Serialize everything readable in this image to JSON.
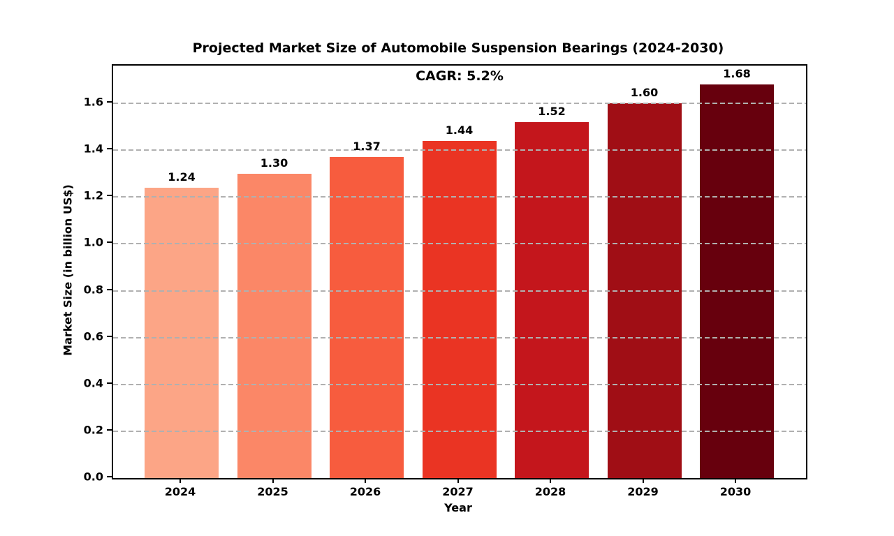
{
  "chart_data": {
    "type": "bar",
    "title": "Projected Market Size of Automobile Suspension Bearings (2024-2030)",
    "annotation": "CAGR: 5.2%",
    "categories": [
      "2024",
      "2025",
      "2026",
      "2027",
      "2028",
      "2029",
      "2030"
    ],
    "values": [
      1.24,
      1.3,
      1.37,
      1.44,
      1.52,
      1.6,
      1.68
    ],
    "value_labels": [
      "1.24",
      "1.30",
      "1.37",
      "1.44",
      "1.52",
      "1.60",
      "1.68"
    ],
    "bar_colors": [
      "#FCA586",
      "#FB8767",
      "#F75C3E",
      "#EA3423",
      "#C4161C",
      "#A00E15",
      "#67000D"
    ],
    "xlabel": "Year",
    "ylabel": "Market Size (in billion US$)",
    "ylim": [
      0,
      1.761
    ],
    "yticks": [
      0.0,
      0.2,
      0.4,
      0.6,
      0.8,
      1.0,
      1.2,
      1.4,
      1.6
    ],
    "ytick_labels": [
      "0.0",
      "0.2",
      "0.4",
      "0.6",
      "0.8",
      "1.0",
      "1.2",
      "1.4",
      "1.6"
    ],
    "grid": "horizontal-dashed-above-bars",
    "gridline_color": "#b0b0b0",
    "text_color": "#000000",
    "background_color": "#ffffff"
  }
}
